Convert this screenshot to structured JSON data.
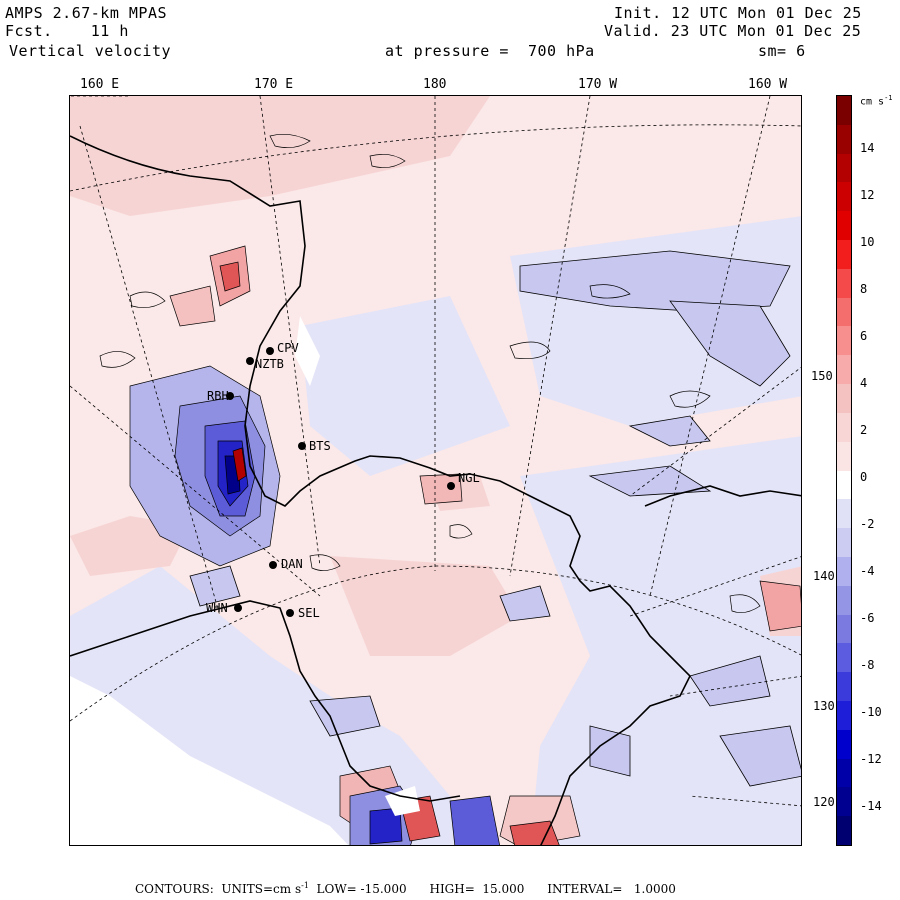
{
  "header": {
    "model": "AMPS 2.67-km MPAS",
    "fcst": "Fcst.    11 h",
    "field": "Vertical velocity",
    "init": "Init. 12 UTC Mon 01 Dec 25",
    "valid": "Valid. 23 UTC Mon 01 Dec 25",
    "level": "at pressure =  700 hPa",
    "smooth": "sm= 6"
  },
  "lon_labels": [
    "160 E",
    "170 E",
    "180",
    "170 W",
    "160 W"
  ],
  "lat_labels": [
    "150 W",
    "140 W",
    "130 W",
    "120 W"
  ],
  "colorbar": {
    "units_label": "cm s",
    "units_exp": "-1",
    "ticks": [
      "14",
      "12",
      "10",
      "8",
      "6",
      "4",
      "2",
      "0",
      "-2",
      "-4",
      "-6",
      "-8",
      "-10",
      "-12",
      "-14"
    ],
    "colors": [
      "#7a0000",
      "#990000",
      "#b30000",
      "#cc0000",
      "#e00000",
      "#f21d1d",
      "#f54a4a",
      "#f56e6e",
      "#f78f8f",
      "#f7abab",
      "#f5c2c2",
      "#f8d6d6",
      "#fbe4e4",
      "#ffffff",
      "#e0e0f7",
      "#ccccf2",
      "#b0b0ee",
      "#9595e6",
      "#7a7ae0",
      "#5c5ce0",
      "#3b3bdc",
      "#1e1ed9",
      "#0000cc",
      "#0000a8",
      "#000090",
      "#000070"
    ],
    "levels": {
      "min": -15,
      "max": 15
    }
  },
  "stations": [
    {
      "code": "CPV"
    },
    {
      "code": "NZTB"
    },
    {
      "code": "BTS"
    },
    {
      "code": "NGL"
    },
    {
      "code": "DAN"
    },
    {
      "code": "WHN"
    },
    {
      "code": "SEL"
    },
    {
      "code": "RBH"
    }
  ],
  "footer": {
    "contours": "CONTOURS:  UNITS=cm s",
    "exp": "-1",
    "rest": "  LOW= -15.000      HIGH=  15.000      INTERVAL=   1.0000"
  }
}
